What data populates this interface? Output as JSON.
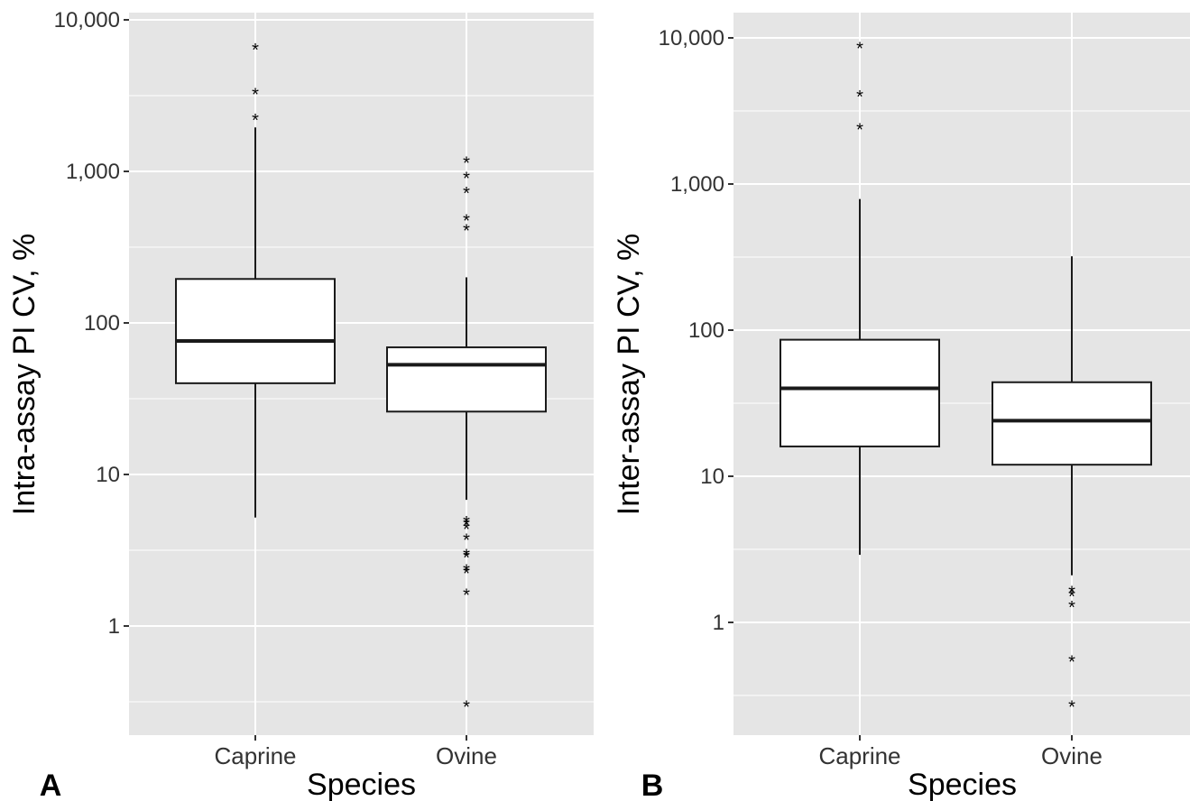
{
  "chart_data": [
    {
      "type": "box",
      "panel_label": "A",
      "xlabel": "Species",
      "ylabel": "Intra-assay PI CV, %",
      "y_scale": "log10",
      "ylim": [
        0.2,
        14000
      ],
      "y_ticks": [
        1,
        10,
        100,
        1000,
        10000
      ],
      "y_tick_labels": [
        "1",
        "10",
        "100",
        "1,000",
        "10,000"
      ],
      "categories": [
        "Caprine",
        "Ovine"
      ],
      "boxes": [
        {
          "category": "Caprine",
          "whisker_low": 5.2,
          "q1": 40,
          "median": 76,
          "q3": 195,
          "whisker_high": 1950,
          "outliers": [
            2300,
            3400,
            6700
          ]
        },
        {
          "category": "Ovine",
          "whisker_low": 6.8,
          "q1": 26,
          "median": 53,
          "q3": 69,
          "whisker_high": 200,
          "outliers": [
            0.31,
            1.7,
            2.35,
            2.45,
            3.0,
            3.1,
            3.9,
            4.6,
            4.9,
            5.1,
            430,
            500,
            760,
            950,
            1200
          ]
        }
      ],
      "grid": true,
      "background": "#e5e5e5"
    },
    {
      "type": "box",
      "panel_label": "B",
      "xlabel": "Species",
      "ylabel": "Inter-assay PI CV, %",
      "y_scale": "log10",
      "ylim": [
        0.2,
        16000
      ],
      "y_ticks": [
        1,
        10,
        100,
        1000,
        10000
      ],
      "y_tick_labels": [
        "1",
        "10",
        "100",
        "1,000",
        "10,000"
      ],
      "categories": [
        "Caprine",
        "Ovine"
      ],
      "boxes": [
        {
          "category": "Caprine",
          "whisker_low": 2.9,
          "q1": 16,
          "median": 40,
          "q3": 86,
          "whisker_high": 790,
          "outliers": [
            2500,
            4200,
            9000
          ]
        },
        {
          "category": "Ovine",
          "whisker_low": 2.1,
          "q1": 12,
          "median": 24,
          "q3": 44,
          "whisker_high": 320,
          "outliers": [
            0.28,
            0.57,
            1.35,
            1.6,
            1.7
          ]
        }
      ],
      "grid": true,
      "background": "#e5e5e5"
    }
  ],
  "colors": {
    "panel_bg": "#e5e5e5",
    "grid": "#ffffff",
    "box_fill": "#ffffff",
    "line": "#1a1a1a"
  }
}
